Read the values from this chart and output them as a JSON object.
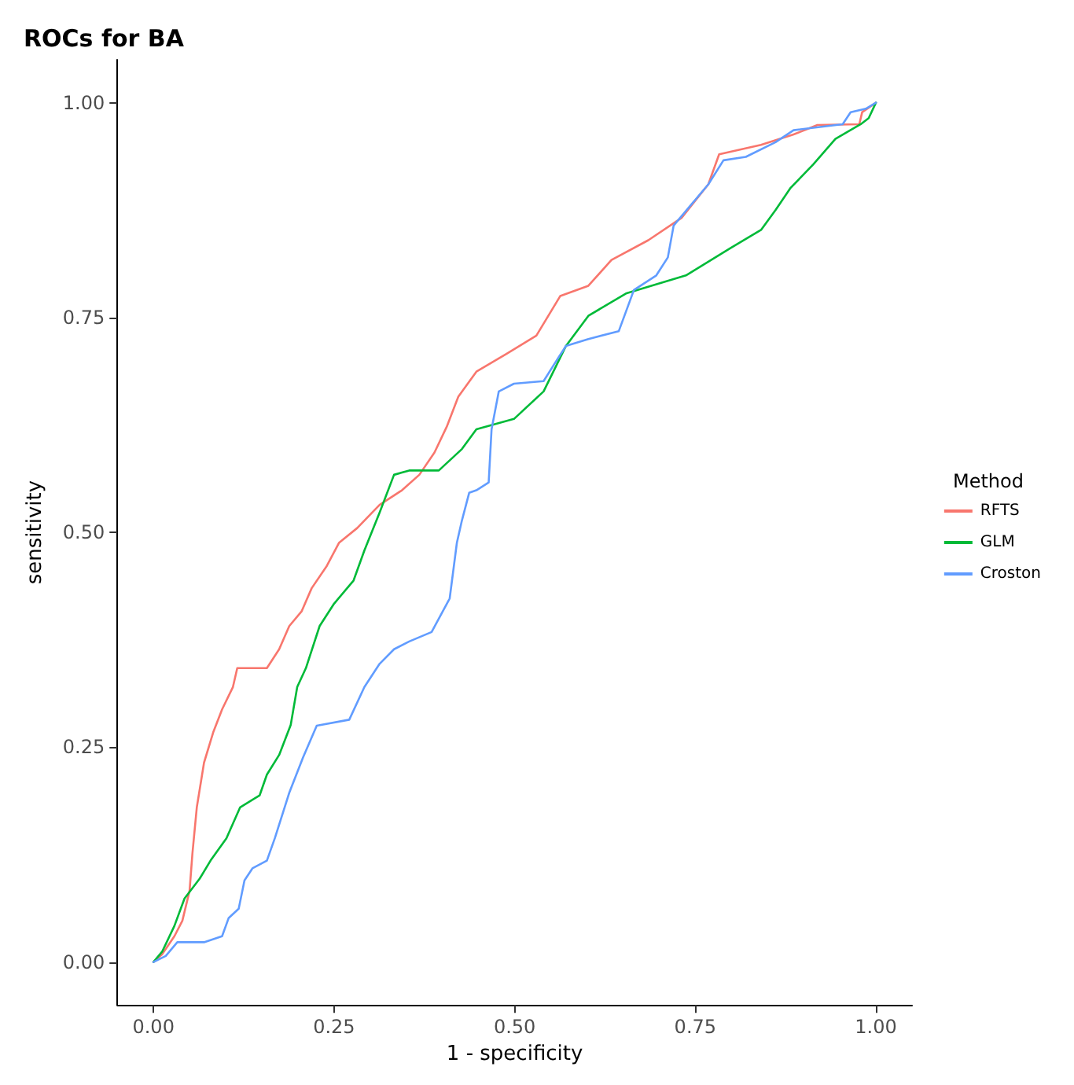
{
  "chart_data": {
    "type": "line",
    "title": "ROCs for BA",
    "xlabel": "1 - specificity",
    "ylabel": "sensitivity",
    "legend_title": "Method",
    "legend": "right",
    "grid": false,
    "marker": "none",
    "line_style": "solid",
    "xlim": [
      -0.05,
      1.05
    ],
    "ylim": [
      -0.05,
      1.05
    ],
    "xticks": [
      {
        "value": 0,
        "label": "0.00"
      },
      {
        "value": 0.25,
        "label": "0.25"
      },
      {
        "value": 0.5,
        "label": "0.50"
      },
      {
        "value": 0.75,
        "label": "0.75"
      },
      {
        "value": 1,
        "label": "1.00"
      }
    ],
    "yticks": [
      {
        "value": 0,
        "label": "0.00"
      },
      {
        "value": 0.25,
        "label": "0.25"
      },
      {
        "value": 0.5,
        "label": "0.50"
      },
      {
        "value": 0.75,
        "label": "0.75"
      },
      {
        "value": 1,
        "label": "1.00"
      }
    ],
    "series": [
      {
        "name": "RFTS",
        "color": "#f8766d",
        "x": [
          0,
          0.012,
          0.029,
          0.04,
          0.05,
          0.054,
          0.06,
          0.07,
          0.083,
          0.095,
          0.11,
          0.116,
          0.157,
          0.174,
          0.188,
          0.205,
          0.219,
          0.24,
          0.257,
          0.282,
          0.313,
          0.344,
          0.368,
          0.389,
          0.406,
          0.422,
          0.447,
          0.489,
          0.53,
          0.563,
          0.602,
          0.634,
          0.685,
          0.731,
          0.768,
          0.783,
          0.841,
          0.886,
          0.919,
          0.977,
          0.981,
          1
        ],
        "values": [
          0,
          0.009,
          0.03,
          0.048,
          0.083,
          0.127,
          0.18,
          0.232,
          0.268,
          0.294,
          0.32,
          0.342,
          0.342,
          0.364,
          0.391,
          0.408,
          0.435,
          0.461,
          0.488,
          0.505,
          0.532,
          0.549,
          0.567,
          0.593,
          0.623,
          0.658,
          0.687,
          0.708,
          0.729,
          0.775,
          0.787,
          0.817,
          0.84,
          0.866,
          0.905,
          0.94,
          0.951,
          0.963,
          0.974,
          0.975,
          0.989,
          1
        ]
      },
      {
        "name": "GLM",
        "color": "#00ba38",
        "x": [
          0,
          0.012,
          0.029,
          0.043,
          0.064,
          0.079,
          0.101,
          0.12,
          0.147,
          0.157,
          0.174,
          0.19,
          0.199,
          0.211,
          0.23,
          0.25,
          0.277,
          0.292,
          0.313,
          0.333,
          0.354,
          0.395,
          0.427,
          0.447,
          0.499,
          0.54,
          0.571,
          0.602,
          0.654,
          0.737,
          0.799,
          0.841,
          0.861,
          0.882,
          0.913,
          0.944,
          0.979,
          0.99,
          1
        ],
        "values": [
          0,
          0.012,
          0.042,
          0.074,
          0.097,
          0.118,
          0.144,
          0.18,
          0.194,
          0.218,
          0.241,
          0.276,
          0.32,
          0.342,
          0.391,
          0.417,
          0.444,
          0.479,
          0.523,
          0.567,
          0.572,
          0.572,
          0.597,
          0.62,
          0.632,
          0.664,
          0.717,
          0.752,
          0.778,
          0.799,
          0.831,
          0.852,
          0.875,
          0.901,
          0.928,
          0.958,
          0.975,
          0.982,
          1
        ]
      },
      {
        "name": "Croston",
        "color": "#619cff",
        "x": [
          0,
          0.017,
          0.033,
          0.07,
          0.095,
          0.104,
          0.118,
          0.126,
          0.137,
          0.157,
          0.168,
          0.188,
          0.207,
          0.226,
          0.271,
          0.292,
          0.313,
          0.333,
          0.354,
          0.385,
          0.41,
          0.42,
          0.427,
          0.437,
          0.447,
          0.464,
          0.468,
          0.478,
          0.499,
          0.54,
          0.561,
          0.571,
          0.602,
          0.644,
          0.665,
          0.696,
          0.712,
          0.72,
          0.747,
          0.768,
          0.789,
          0.82,
          0.861,
          0.886,
          0.954,
          0.965,
          0.986,
          1
        ],
        "values": [
          0,
          0.007,
          0.023,
          0.023,
          0.03,
          0.051,
          0.062,
          0.095,
          0.109,
          0.118,
          0.144,
          0.197,
          0.238,
          0.275,
          0.282,
          0.32,
          0.347,
          0.364,
          0.373,
          0.384,
          0.423,
          0.488,
          0.514,
          0.546,
          0.549,
          0.558,
          0.62,
          0.664,
          0.673,
          0.676,
          0.704,
          0.717,
          0.725,
          0.734,
          0.782,
          0.799,
          0.82,
          0.857,
          0.884,
          0.905,
          0.933,
          0.937,
          0.954,
          0.968,
          0.975,
          0.989,
          0.993,
          1
        ]
      }
    ]
  }
}
